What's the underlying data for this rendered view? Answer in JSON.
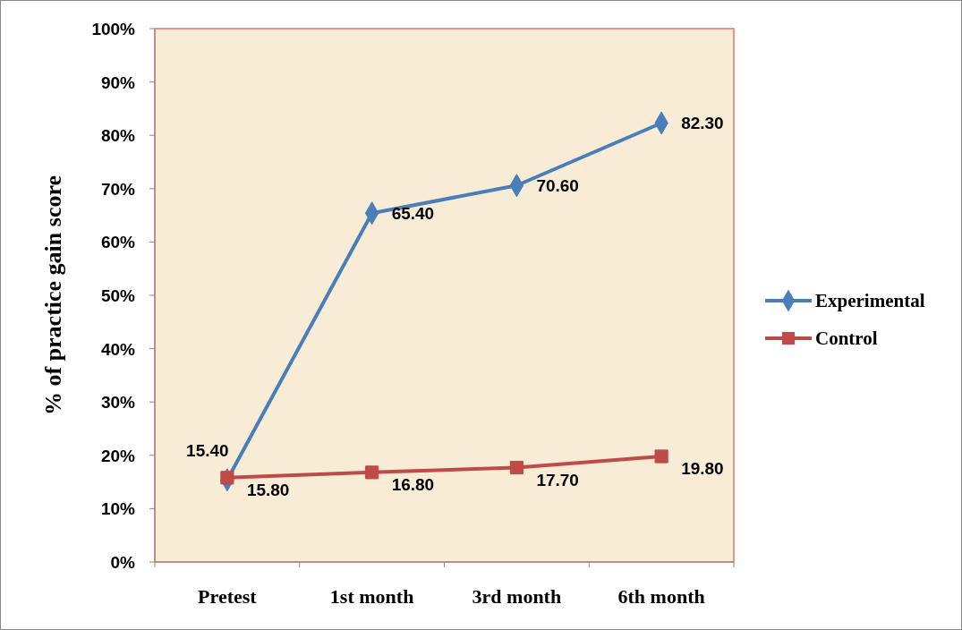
{
  "chart_data": {
    "type": "line",
    "ylabel": "% of practice  gain score",
    "categories": [
      "Pretest",
      "1st month",
      "3rd month",
      "6th month"
    ],
    "ylim": [
      0,
      100
    ],
    "yticks": [
      {
        "value": 0,
        "label": "0%"
      },
      {
        "value": 10,
        "label": "10%"
      },
      {
        "value": 20,
        "label": "20%"
      },
      {
        "value": 30,
        "label": "30%"
      },
      {
        "value": 40,
        "label": "40%"
      },
      {
        "value": 50,
        "label": "50%"
      },
      {
        "value": 60,
        "label": "60%"
      },
      {
        "value": 70,
        "label": "70%"
      },
      {
        "value": 80,
        "label": "80%"
      },
      {
        "value": 90,
        "label": "90%"
      },
      {
        "value": 100,
        "label": "100%"
      }
    ],
    "series": [
      {
        "name": "Experimental",
        "color": "#4a7ebb",
        "marker": "diamond",
        "values": [
          15.4,
          65.4,
          70.6,
          82.3
        ],
        "value_labels": [
          "15.40",
          "65.40",
          "70.60",
          "82.30"
        ]
      },
      {
        "name": "Control",
        "color": "#be4b48",
        "marker": "square",
        "values": [
          15.8,
          16.8,
          17.7,
          19.8
        ],
        "value_labels": [
          "15.80",
          "16.80",
          "17.70",
          "19.80"
        ]
      }
    ],
    "grid": false,
    "legend": "right",
    "line_style": "solid"
  }
}
